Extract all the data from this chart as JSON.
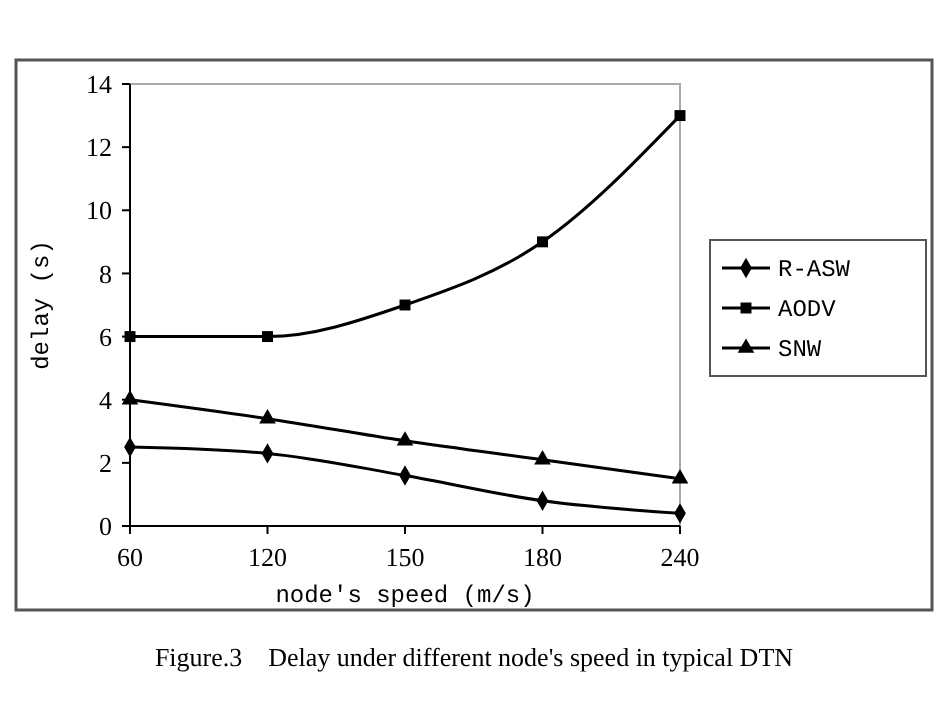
{
  "chart_data": {
    "type": "line",
    "xlabel": "node's speed (m/s)",
    "ylabel": "delay (s)",
    "categories": [
      "60",
      "120",
      "150",
      "180",
      "240"
    ],
    "ylim": [
      0,
      14
    ],
    "yticks": [
      0,
      2,
      4,
      6,
      8,
      10,
      12,
      14
    ],
    "grid": false,
    "legend": "right",
    "series": [
      {
        "name": "R-ASW",
        "color": "#000000",
        "marker": "diamond",
        "values": [
          2.5,
          2.3,
          1.6,
          0.8,
          0.4
        ]
      },
      {
        "name": "AODV",
        "color": "#000000",
        "marker": "square",
        "values": [
          6,
          6,
          7,
          9,
          13
        ]
      },
      {
        "name": "SNW",
        "color": "#000000",
        "marker": "triangle",
        "values": [
          4,
          3.4,
          2.7,
          2.1,
          1.5
        ]
      }
    ],
    "annotations": [
      "Figure.3    Delay under different node's speed in typical DTN"
    ]
  }
}
